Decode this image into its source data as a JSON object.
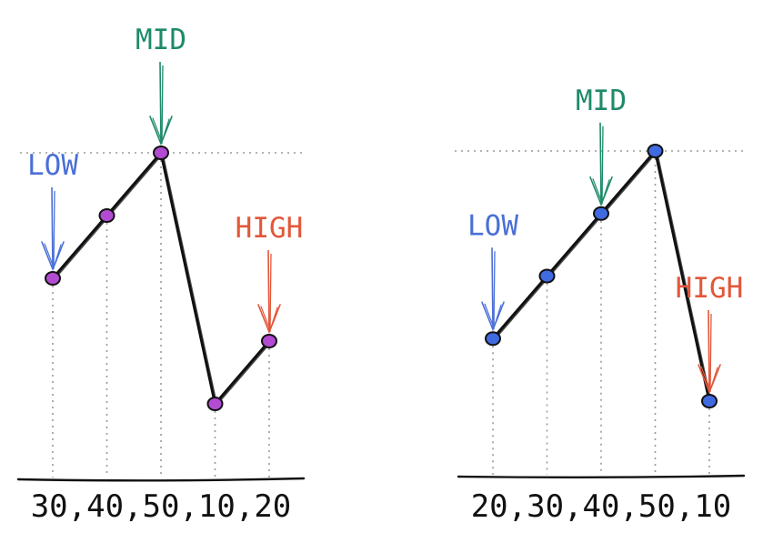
{
  "diagrams": [
    {
      "id": "left",
      "sequence_label": "30,40,50,10,20",
      "values": [
        30,
        40,
        50,
        10,
        20
      ],
      "point_color": "#b24bd2",
      "markers": [
        {
          "label": "LOW",
          "index": 0,
          "color": "#4a6fd6"
        },
        {
          "label": "MID",
          "index": 2,
          "color": "#1e8a6a"
        },
        {
          "label": "HIGH",
          "index": 4,
          "color": "#e2573a"
        }
      ]
    },
    {
      "id": "right",
      "sequence_label": "20,30,40,50,10",
      "values": [
        20,
        30,
        40,
        50,
        10
      ],
      "point_color": "#3f6ae0",
      "markers": [
        {
          "label": "LOW",
          "index": 0,
          "color": "#4a6fd6"
        },
        {
          "label": "MID",
          "index": 2,
          "color": "#1e8a6a"
        },
        {
          "label": "HIGH",
          "index": 4,
          "color": "#e2573a"
        }
      ]
    }
  ]
}
